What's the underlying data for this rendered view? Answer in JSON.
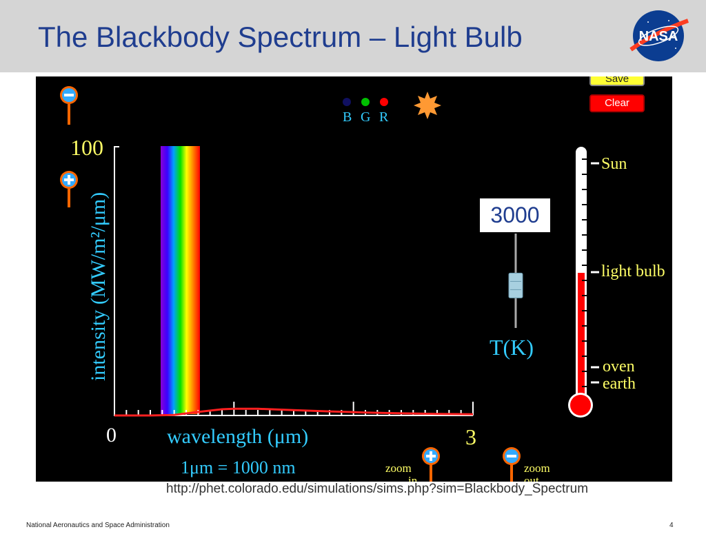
{
  "slide": {
    "title": "The Blackbody Spectrum – Light Bulb",
    "logo_text": "NASA",
    "source_url": "http://phet.colorado.edu/simulations/sims.php?sim=Blackbody_Spectrum",
    "footer_org": "National Aeronautics and Space Administration",
    "page_number": "4"
  },
  "simulation": {
    "buttons": {
      "save": "Save",
      "clear": "Clear"
    },
    "bgr": {
      "b": "B",
      "g": "G",
      "r": "R"
    },
    "axis": {
      "y_max_label": "100",
      "y_label": "intensity (MW/m²/μm)",
      "x_min_label": "0",
      "x_max_label": "3",
      "x_label": "wavelength (μm)",
      "unit_note": "1μm  =  1000 nm"
    },
    "zoom": {
      "in_label": "zoom",
      "in_sub": "in",
      "out_label": "zoom",
      "out_sub": "out"
    },
    "temperature": {
      "value": "3000",
      "unit_label": "T(K)",
      "slider_fraction": 0.55
    },
    "thermometer": {
      "labels": {
        "sun": "Sun",
        "light_bulb": "light bulb",
        "oven": "oven",
        "earth": "earth"
      },
      "fill_color": "#ff0000"
    }
  },
  "chart_data": {
    "type": "line",
    "xlabel": "wavelength (μm)",
    "ylabel": "intensity (MW/m²/μm)",
    "xlim": [
      0,
      3
    ],
    "ylim": [
      0,
      100
    ],
    "series": [
      {
        "x": [
          0,
          0.3,
          0.5,
          0.7,
          0.9,
          1.0,
          1.2,
          1.5,
          1.8,
          2.1,
          2.4,
          2.7,
          3.0
        ],
        "y": [
          0,
          0.0,
          0.2,
          1.3,
          2.3,
          2.5,
          2.5,
          2.0,
          1.5,
          1.1,
          0.8,
          0.6,
          0.45
        ]
      }
    ],
    "visible_spectrum_band_um": [
      0.38,
      0.75
    ],
    "colors": {
      "curve": "#ff2020",
      "axis": "#ffffff"
    }
  }
}
